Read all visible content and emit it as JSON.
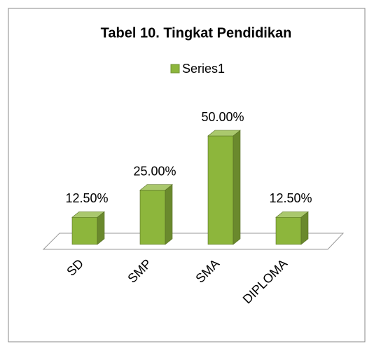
{
  "chart_data": {
    "type": "bar",
    "title": "Tabel 10. Tingkat Pendidikan",
    "categories": [
      "SD",
      "SMP",
      "SMA",
      "DIPLOMA"
    ],
    "series": [
      {
        "name": "Series1",
        "color": "#8db63c",
        "values": [
          12.5,
          25,
          50,
          12.5
        ],
        "value_labels": [
          "12.50%",
          "25.00%",
          "50.00%",
          "12.50%"
        ]
      }
    ],
    "legend": "top"
  }
}
